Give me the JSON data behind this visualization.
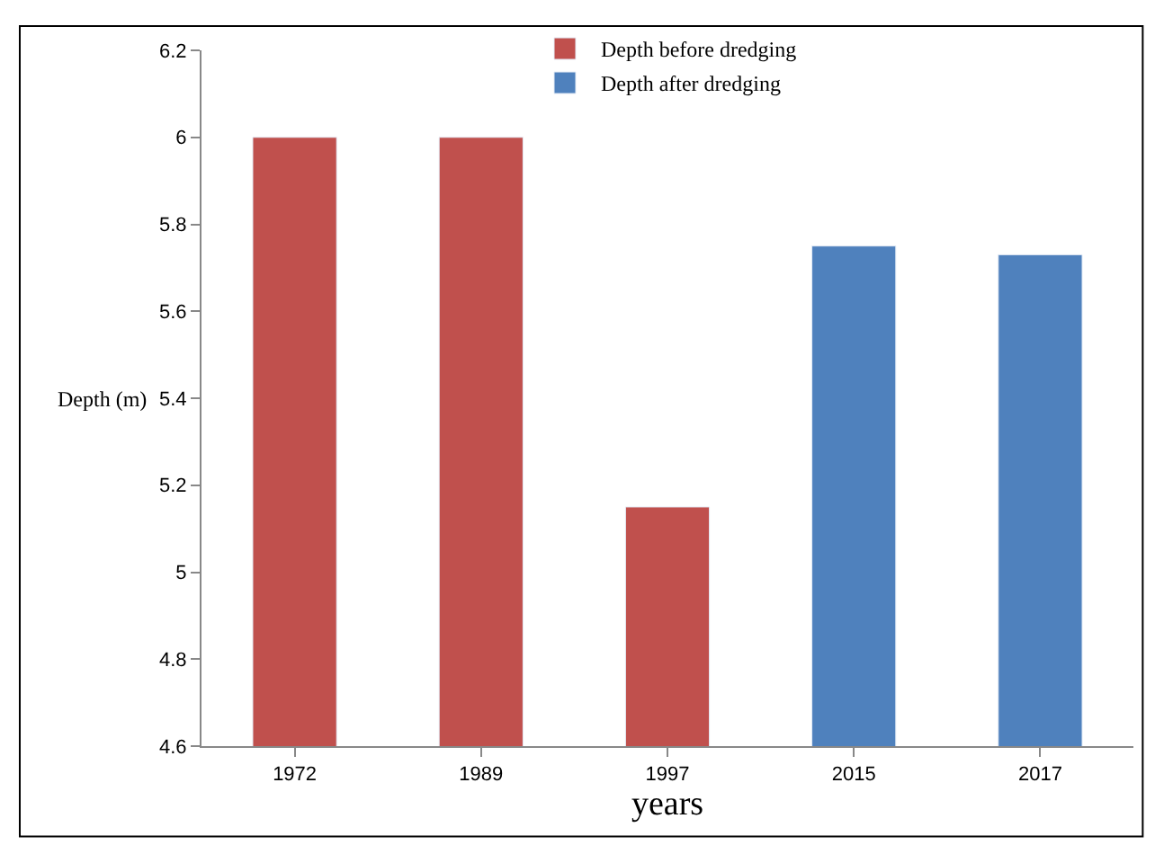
{
  "chart_data": {
    "type": "bar",
    "xlabel": "years",
    "ylabel": "Depth (m)",
    "categories": [
      "1972",
      "1989",
      "1997",
      "2015",
      "2017"
    ],
    "series": [
      {
        "name": "Depth before dredging",
        "color": "#c0504d",
        "values": [
          6,
          6,
          5.15,
          null,
          null
        ]
      },
      {
        "name": "Depth after dredging",
        "color": "#4f81bd",
        "values": [
          null,
          null,
          null,
          5.75,
          5.73
        ]
      }
    ],
    "ylim": [
      4.6,
      6.2
    ],
    "yticks": [
      4.6,
      4.8,
      5,
      5.2,
      5.4,
      5.6,
      5.8,
      6,
      6.2
    ],
    "legend": "top"
  }
}
